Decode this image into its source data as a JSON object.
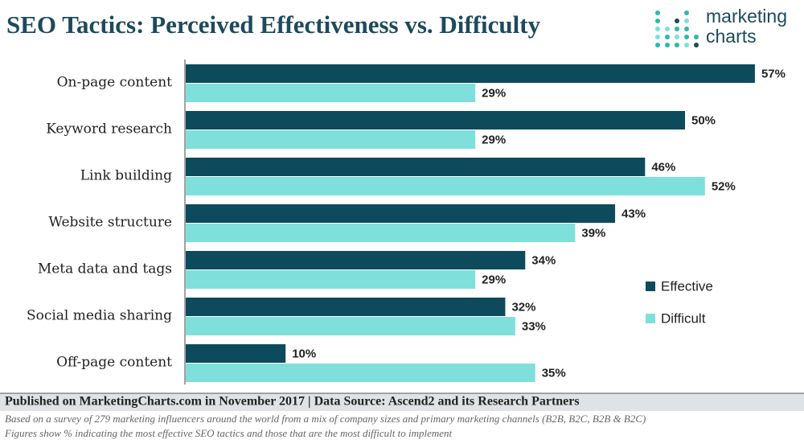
{
  "chart_data": {
    "type": "bar",
    "orientation": "horizontal",
    "title": "SEO Tactics: Perceived Effectiveness vs. Difficulty",
    "categories": [
      "On-page content",
      "Keyword research",
      "Link building",
      "Website structure",
      "Meta data and tags",
      "Social media sharing",
      "Off-page content"
    ],
    "series": [
      {
        "name": "Effective",
        "color": "#0d4a5c",
        "values": [
          57,
          50,
          46,
          43,
          34,
          32,
          10
        ],
        "value_labels": [
          "57%",
          "50%",
          "46%",
          "43%",
          "34%",
          "32%",
          "10%"
        ]
      },
      {
        "name": "Difficult",
        "color": "#7fdfda",
        "values": [
          29,
          29,
          52,
          39,
          29,
          33,
          35
        ],
        "value_labels": [
          "29%",
          "29%",
          "52%",
          "39%",
          "29%",
          "33%",
          "35%"
        ]
      }
    ],
    "legend": "right"
  },
  "logo": {
    "line1": "marketing",
    "line2": "charts"
  },
  "footer": {
    "published": "Published on MarketingCharts.com in November 2017 | Data Source: Ascend2 and its Research Partners",
    "notes": [
      "Based on a survey of 279 marketing influencers around the world from a mix of company sizes and primary marketing channels (B2B, B2C, B2B & B2C)",
      "Figures show % indicating the most effective SEO tactics and those that are the most difficult to implement"
    ]
  }
}
